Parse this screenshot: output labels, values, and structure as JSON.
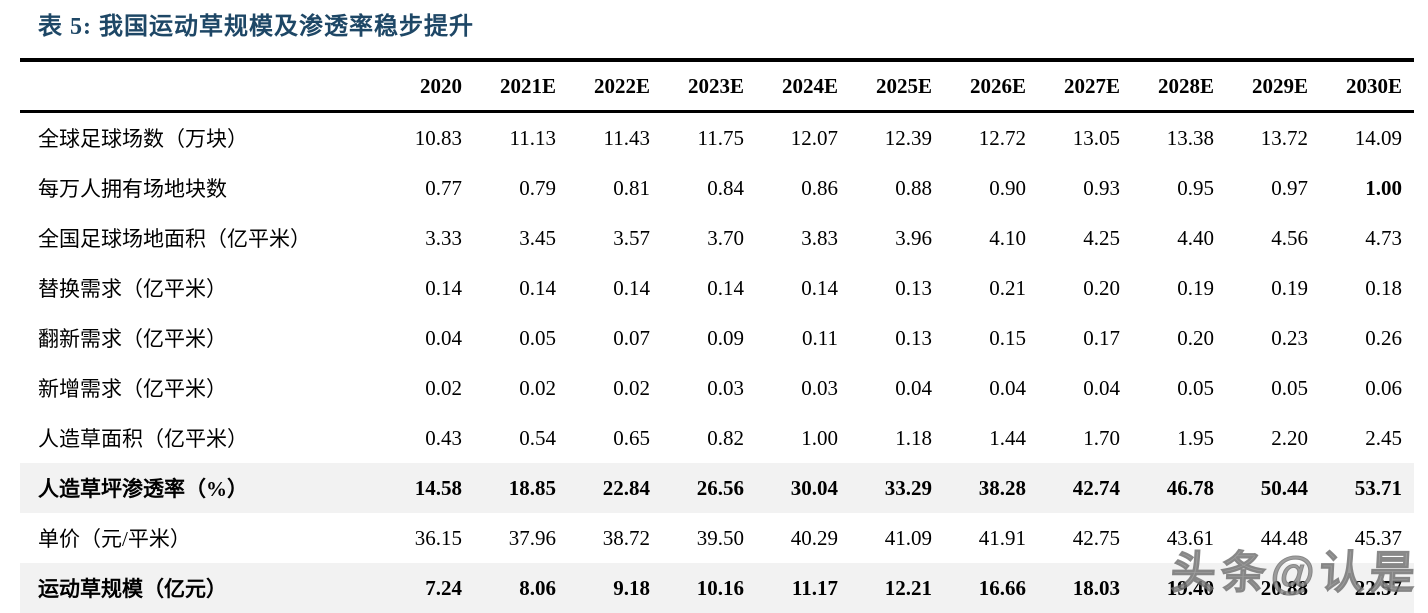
{
  "page": {
    "title": "表 5:  我国运动草规模及渗透率稳步提升",
    "watermark": "头条@认是"
  },
  "colors": {
    "title": "#1e4766",
    "border": "#000000",
    "shaded_row": "#f2f2f2",
    "watermark": "#8a8a8a"
  },
  "table": {
    "label_header": "",
    "columns": [
      "2020",
      "2021E",
      "2022E",
      "2023E",
      "2024E",
      "2025E",
      "2026E",
      "2027E",
      "2028E",
      "2029E",
      "2030E"
    ],
    "rows": [
      {
        "label": "全球足球场数（万块）",
        "values": [
          "10.83",
          "11.13",
          "11.43",
          "11.75",
          "12.07",
          "12.39",
          "12.72",
          "13.05",
          "13.38",
          "13.72",
          "14.09"
        ],
        "shaded": false,
        "bold_cells": []
      },
      {
        "label": "每万人拥有场地块数",
        "values": [
          "0.77",
          "0.79",
          "0.81",
          "0.84",
          "0.86",
          "0.88",
          "0.90",
          "0.93",
          "0.95",
          "0.97",
          "1.00"
        ],
        "shaded": false,
        "bold_cells": [
          10
        ]
      },
      {
        "label": "全国足球场地面积（亿平米）",
        "values": [
          "3.33",
          "3.45",
          "3.57",
          "3.70",
          "3.83",
          "3.96",
          "4.10",
          "4.25",
          "4.40",
          "4.56",
          "4.73"
        ],
        "shaded": false,
        "bold_cells": []
      },
      {
        "label": "替换需求（亿平米）",
        "values": [
          "0.14",
          "0.14",
          "0.14",
          "0.14",
          "0.14",
          "0.13",
          "0.21",
          "0.20",
          "0.19",
          "0.19",
          "0.18"
        ],
        "shaded": false,
        "bold_cells": []
      },
      {
        "label": "翻新需求（亿平米）",
        "values": [
          "0.04",
          "0.05",
          "0.07",
          "0.09",
          "0.11",
          "0.13",
          "0.15",
          "0.17",
          "0.20",
          "0.23",
          "0.26"
        ],
        "shaded": false,
        "bold_cells": []
      },
      {
        "label": "新增需求（亿平米）",
        "values": [
          "0.02",
          "0.02",
          "0.02",
          "0.03",
          "0.03",
          "0.04",
          "0.04",
          "0.04",
          "0.05",
          "0.05",
          "0.06"
        ],
        "shaded": false,
        "bold_cells": []
      },
      {
        "label": "人造草面积（亿平米）",
        "values": [
          "0.43",
          "0.54",
          "0.65",
          "0.82",
          "1.00",
          "1.18",
          "1.44",
          "1.70",
          "1.95",
          "2.20",
          "2.45"
        ],
        "shaded": false,
        "bold_cells": []
      },
      {
        "label": "人造草坪渗透率（%）",
        "values": [
          "14.58",
          "18.85",
          "22.84",
          "26.56",
          "30.04",
          "33.29",
          "38.28",
          "42.74",
          "46.78",
          "50.44",
          "53.71"
        ],
        "shaded": true,
        "bold_cells": []
      },
      {
        "label": "单价（元/平米）",
        "values": [
          "36.15",
          "37.96",
          "38.72",
          "39.50",
          "40.29",
          "41.09",
          "41.91",
          "42.75",
          "43.61",
          "44.48",
          "45.37"
        ],
        "shaded": false,
        "bold_cells": []
      },
      {
        "label": "运动草规模（亿元）",
        "values": [
          "7.24",
          "8.06",
          "9.18",
          "10.16",
          "11.17",
          "12.21",
          "16.66",
          "18.03",
          "19.40",
          "20.88",
          "22.57"
        ],
        "shaded": true,
        "bold_cells": []
      }
    ]
  }
}
